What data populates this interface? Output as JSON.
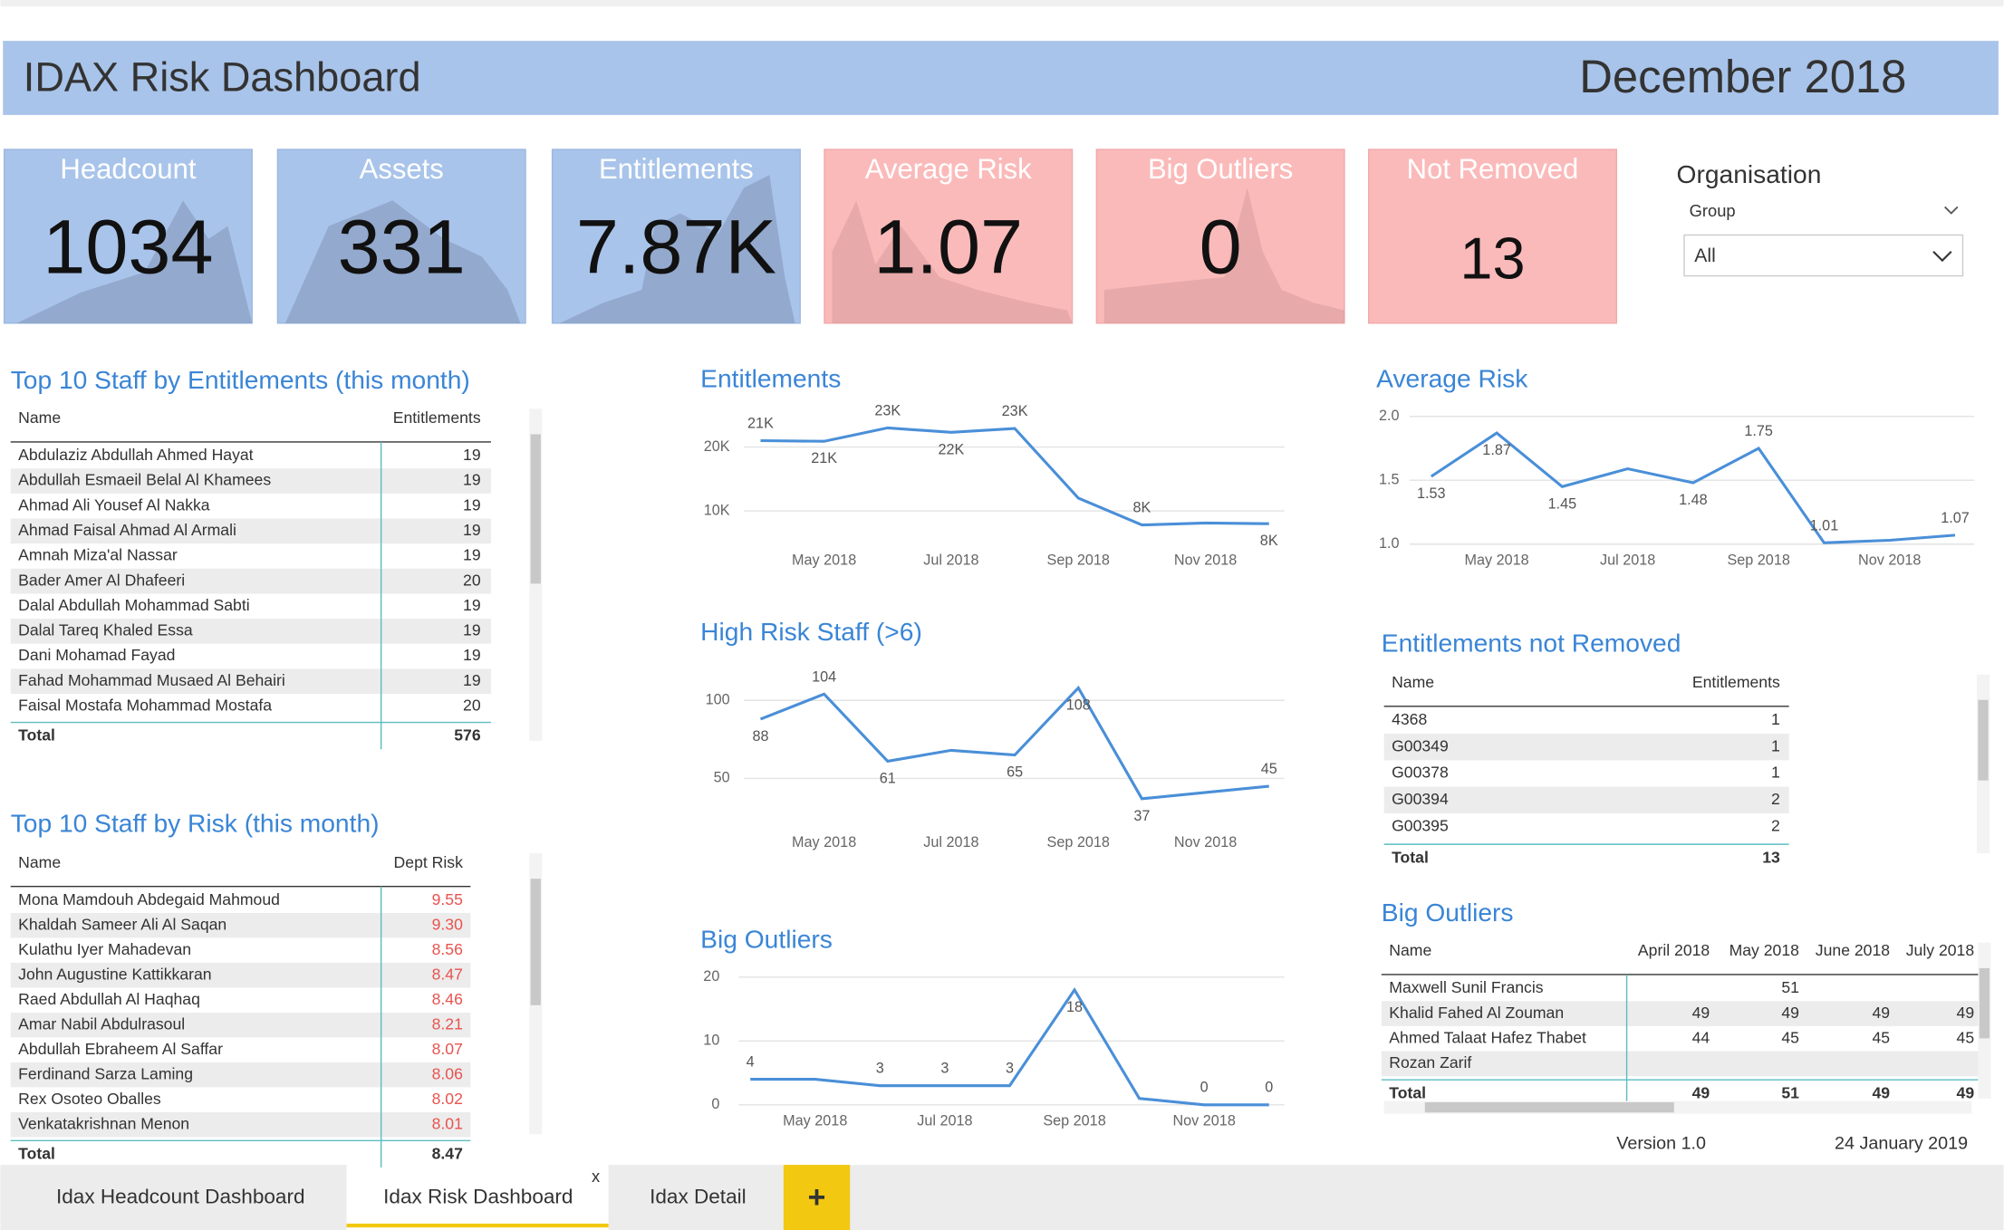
{
  "header": {
    "title": "IDAX Risk Dashboard",
    "date": "December 2018"
  },
  "kpis": [
    {
      "label": "Headcount",
      "value": 1034
    },
    {
      "label": "Assets",
      "value": 331
    },
    {
      "label": "Entitlements",
      "value": "7.87K"
    },
    {
      "label": "Average Risk",
      "value": 1.07
    },
    {
      "label": "Big Outliers",
      "value": 0
    },
    {
      "label": "Not Removed",
      "value": 13
    }
  ],
  "filter": {
    "title": "Organisation",
    "field": "Group",
    "selected": "All"
  },
  "tables": {
    "top_entitlements": {
      "title": "Top 10 Staff by Entitlements (this month)",
      "columns": [
        "Name",
        "Entitlements"
      ],
      "rows": [
        [
          "Abdulaziz Abdullah Ahmed Hayat",
          19
        ],
        [
          "Abdullah Esmaeil Belal Al Khamees",
          19
        ],
        [
          "Ahmad Ali Yousef Al Nakka",
          19
        ],
        [
          "Ahmad Faisal Ahmad Al Armali",
          19
        ],
        [
          "Amnah Miza'al Nassar",
          19
        ],
        [
          "Bader Amer Al Dhafeeri",
          20
        ],
        [
          "Dalal Abdullah Mohammad Sabti",
          19
        ],
        [
          "Dalal Tareq Khaled Essa",
          19
        ],
        [
          "Dani Mohamad Fayad",
          19
        ],
        [
          "Fahad Mohammad Musaed Al Behairi",
          19
        ],
        [
          "Faisal Mostafa Mohammad Mostafa",
          20
        ]
      ],
      "total": [
        "Total",
        576
      ]
    },
    "top_risk": {
      "title": "Top 10 Staff by Risk (this month)",
      "columns": [
        "Name",
        "Dept Risk"
      ],
      "rows": [
        [
          "Mona Mamdouh Abdegaid Mahmoud",
          "9.55"
        ],
        [
          "Khaldah Sameer Ali Al Saqan",
          "9.30"
        ],
        [
          "Kulathu Iyer Mahadevan",
          "8.56"
        ],
        [
          "John Augustine Kattikkaran",
          "8.47"
        ],
        [
          "Raed Abdullah Al Haqhaq",
          "8.46"
        ],
        [
          "Amar Nabil Abdulrasoul",
          "8.21"
        ],
        [
          "Abdullah Ebraheem Al Saffar",
          "8.07"
        ],
        [
          "Ferdinand Sarza Laming",
          "8.06"
        ],
        [
          "Rex Osoteo Oballes",
          "8.02"
        ],
        [
          "Venkatakrishnan Menon",
          "8.01"
        ]
      ],
      "total": [
        "Total",
        "8.47"
      ]
    },
    "not_removed": {
      "title": "Entitlements not Removed",
      "columns": [
        "Name",
        "Entitlements"
      ],
      "rows": [
        [
          "4368",
          1
        ],
        [
          "G00349",
          1
        ],
        [
          "G00378",
          1
        ],
        [
          "G00394",
          2
        ],
        [
          "G00395",
          2
        ]
      ],
      "total": [
        "Total",
        13
      ]
    },
    "big_outliers": {
      "title": "Big Outliers",
      "columns": [
        "Name",
        "April 2018",
        "May 2018",
        "June 2018",
        "July 2018"
      ],
      "rows": [
        [
          "Maxwell Sunil Francis",
          null,
          51,
          null,
          null
        ],
        [
          "Khalid Fahed Al Zouman",
          49,
          49,
          49,
          49
        ],
        [
          "Ahmed Talaat Hafez Thabet",
          44,
          45,
          45,
          45
        ],
        [
          "Rozan Zarif",
          null,
          null,
          null,
          null
        ]
      ],
      "total": [
        "Total",
        49,
        51,
        49,
        49
      ]
    }
  },
  "chart_data": [
    {
      "type": "line",
      "title": "Entitlements",
      "color": "#4a8fd8",
      "grid": true,
      "categories": [
        null,
        "May 2018",
        null,
        "Jul 2018",
        null,
        "Sep 2018",
        null,
        "Nov 2018",
        null
      ],
      "values": [
        21000,
        20900,
        23000,
        22300,
        22900,
        12000,
        7800,
        8100,
        8000
      ],
      "value_labels": [
        "21K",
        "21K",
        "23K",
        "22K",
        "23K",
        null,
        "8K",
        null,
        "8K"
      ],
      "ylim": [
        5000,
        25000
      ],
      "yticks": [
        {
          "value": 20000,
          "label": "20K"
        },
        {
          "value": 10000,
          "label": "10K"
        }
      ]
    },
    {
      "type": "line",
      "title": "Average Risk",
      "color": "#4a8fd8",
      "grid": true,
      "categories": [
        null,
        "May 2018",
        null,
        "Jul 2018",
        null,
        "Sep 2018",
        null,
        "Nov 2018",
        null
      ],
      "values": [
        1.53,
        1.87,
        1.45,
        1.59,
        1.48,
        1.75,
        1.01,
        1.03,
        1.07
      ],
      "value_labels": [
        "1.53",
        "1.87",
        "1.45",
        null,
        "1.48",
        "1.75",
        "1.01",
        null,
        "1.07"
      ],
      "ylim": [
        1,
        2
      ],
      "yticks": [
        {
          "value": 2,
          "label": "2.0"
        },
        1.5,
        {
          "value": 1,
          "label": "1.0"
        }
      ]
    },
    {
      "type": "line",
      "title": "High Risk Staff (>6)",
      "color": "#4a8fd8",
      "grid": true,
      "categories": [
        null,
        "May 2018",
        null,
        "Jul 2018",
        null,
        "Sep 2018",
        null,
        "Nov 2018",
        null
      ],
      "values": [
        88,
        104,
        61,
        68,
        65,
        108,
        37,
        41,
        45
      ],
      "value_labels": [
        "88",
        "104",
        "61",
        null,
        "65",
        "108",
        "37",
        null,
        "45"
      ],
      "ylim": [
        25,
        115
      ],
      "yticks": [
        100,
        50
      ]
    },
    {
      "type": "line",
      "title": "Big Outliers",
      "color": "#4a8fd8",
      "grid": true,
      "categories": [
        null,
        "May 2018",
        null,
        "Jul 2018",
        null,
        "Sep 2018",
        null,
        "Nov 2018",
        null
      ],
      "values": [
        4,
        4,
        3,
        3,
        3,
        18,
        1,
        0,
        0
      ],
      "value_labels": [
        "4",
        null,
        "3",
        "3",
        "3",
        "18",
        null,
        "0",
        "0"
      ],
      "ylim": [
        0,
        20
      ],
      "yticks": [
        20,
        10,
        0
      ]
    }
  ],
  "footer": {
    "version": "Version 1.0",
    "date": "24 January 2019"
  },
  "tabs": {
    "items": [
      "Idax Headcount Dashboard",
      "Idax Risk Dashboard",
      "Idax Detail"
    ],
    "close": "x",
    "add": "+"
  }
}
